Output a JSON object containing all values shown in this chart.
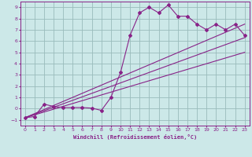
{
  "xlabel": "Windchill (Refroidissement éolien,°C)",
  "background_color": "#cce8e8",
  "grid_color": "#99bbbb",
  "line_color": "#882288",
  "xlim": [
    -0.5,
    23.5
  ],
  "ylim": [
    -1.5,
    9.5
  ],
  "xticks": [
    0,
    1,
    2,
    3,
    4,
    5,
    6,
    7,
    8,
    9,
    10,
    11,
    12,
    13,
    14,
    15,
    16,
    17,
    18,
    19,
    20,
    21,
    22,
    23
  ],
  "yticks": [
    -1,
    0,
    1,
    2,
    3,
    4,
    5,
    6,
    7,
    8,
    9
  ],
  "line1_x": [
    0,
    1,
    2,
    3,
    4,
    5,
    6,
    7,
    8,
    9,
    10,
    11,
    12,
    13,
    14,
    15,
    16,
    17,
    18,
    19,
    20,
    21,
    22,
    23
  ],
  "line1_y": [
    -0.8,
    -0.7,
    0.4,
    0.2,
    0.1,
    0.1,
    0.1,
    0.05,
    -0.15,
    1.0,
    3.2,
    6.5,
    8.5,
    9.0,
    8.5,
    9.2,
    8.2,
    8.2,
    7.5,
    7.0,
    7.5,
    7.0,
    7.5,
    6.5
  ],
  "line2_x": [
    0,
    23
  ],
  "line2_y": [
    -0.8,
    7.5
  ],
  "line3_x": [
    0,
    23
  ],
  "line3_y": [
    -0.8,
    6.3
  ],
  "line4_x": [
    0,
    23
  ],
  "line4_y": [
    -0.8,
    5.0
  ]
}
